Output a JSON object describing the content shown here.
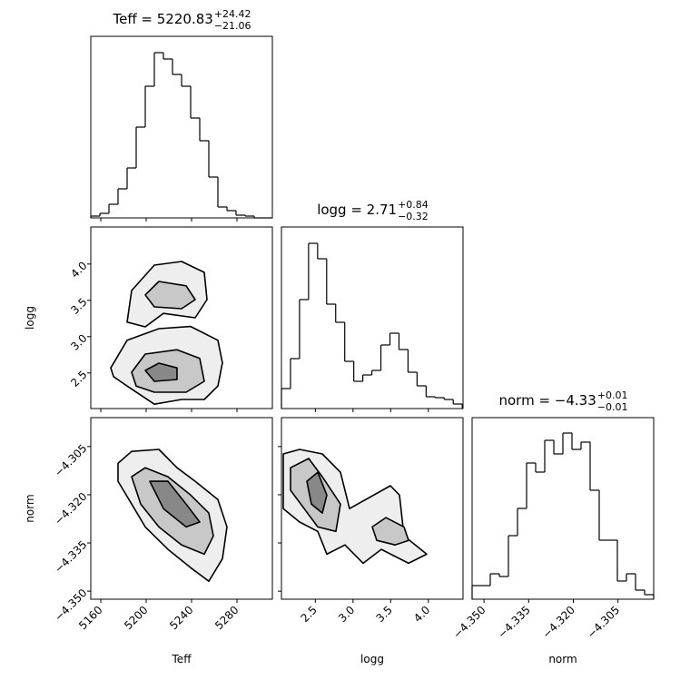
{
  "chart_data": {
    "type": "corner",
    "parameters": [
      {
        "name": "Teff",
        "title": "Teff = 5220.83",
        "title_upper": "+24.42",
        "title_lower": "−21.06",
        "xlim": [
          5151.2,
          5311.2
        ],
        "xticks": [
          5160,
          5200,
          5240,
          5280
        ]
      },
      {
        "name": "logg",
        "title": "logg = 2.71",
        "title_upper": "+0.84",
        "title_lower": "−0.32",
        "xlim": [
          2.05,
          4.46
        ],
        "xticks": [
          2.5,
          {
            "value": 3,
            "label": "3.0"
          },
          3.5,
          {
            "value": 4,
            "label": "4.0"
          }
        ],
        "ylim": [
          2.01,
          4.51
        ],
        "yticks": [
          2.5,
          {
            "value": 3,
            "label": "3.0"
          },
          3.5,
          {
            "value": 4,
            "label": "4.0"
          }
        ]
      },
      {
        "name": "norm",
        "title": "norm = −4.33",
        "title_upper": "+0.01",
        "title_lower": "−0.01",
        "xlim": [
          -4.354,
          -4.293
        ],
        "xticks": [
          {
            "value": -4.35,
            "label": "−4.350"
          },
          {
            "value": -4.335,
            "label": "−4.335"
          },
          {
            "value": -4.32,
            "label": "−4.320"
          },
          {
            "value": -4.305,
            "label": "−4.305"
          }
        ],
        "ylim": [
          -4.3525,
          -4.296
        ],
        "yticks": [
          {
            "value": -4.305,
            "label": "−4.305"
          },
          {
            "value": -4.32,
            "label": "−4.320"
          },
          {
            "value": -4.335,
            "label": "−4.335"
          },
          {
            "value": -4.35,
            "label": "−4.350"
          }
        ]
      }
    ],
    "histograms": [
      {
        "bins": [
          5151.2,
          5159.2,
          5167.2,
          5175.2,
          5183.2,
          5191.2,
          5199.2,
          5207.2,
          5215.2,
          5223.2,
          5231.2,
          5239.2,
          5247.2,
          5255.2,
          5263.2,
          5271.2,
          5279.2,
          5287.2,
          5295.2,
          5303.2,
          5311.2
        ],
        "counts": [
          2,
          5,
          15,
          32,
          55,
          100,
          145,
          182,
          175,
          158,
          145,
          110,
          85,
          45,
          12,
          8,
          3,
          2,
          0,
          0
        ],
        "ylim": [
          0,
          200
        ]
      },
      {
        "bins": [
          2.05,
          2.17,
          2.29,
          2.41,
          2.53,
          2.65,
          2.77,
          2.89,
          3.01,
          3.13,
          3.25,
          3.37,
          3.49,
          3.61,
          3.73,
          3.85,
          3.97,
          4.09,
          4.21,
          4.33,
          4.45
        ],
        "counts": [
          22,
          55,
          120,
          182,
          165,
          115,
          95,
          52,
          30,
          37,
          42,
          70,
          83,
          65,
          40,
          25,
          13,
          12,
          10,
          5
        ],
        "ylim": [
          0,
          200
        ]
      },
      {
        "bins": [
          -4.354,
          -4.35095,
          -4.3479,
          -4.34485,
          -4.3418,
          -4.33875,
          -4.3357,
          -4.33265,
          -4.3296,
          -4.32655,
          -4.3235,
          -4.32045,
          -4.3174,
          -4.31435,
          -4.3113,
          -4.30825,
          -4.3052,
          -4.30215,
          -4.2991,
          -4.29605,
          -4.293
        ],
        "counts": [
          15,
          15,
          28,
          25,
          70,
          100,
          150,
          140,
          175,
          160,
          183,
          165,
          173,
          120,
          65,
          65,
          20,
          28,
          10,
          5
        ],
        "ylim": [
          0,
          200
        ]
      }
    ],
    "pairs": [
      {
        "contours": [
          {
            "fill": "#eeeeee",
            "x": [
              5168.8,
              5183.2,
              5211.2,
              5239.2,
              5263.2,
              5267.2,
              5263.2,
              5251.2,
              5231.2,
              5207.2,
              5183.2,
              5171.2
            ],
            "y": [
              2.57,
              2.95,
              3.11,
              3.14,
              2.95,
              2.64,
              2.32,
              2.135,
              2.135,
              2.07,
              2.32,
              2.45
            ]
          },
          {
            "fill": "#eeeeee",
            "x": [
              5183.2,
              5187.2,
              5207.2,
              5231.2,
              5251.2,
              5253.6,
              5243.2,
              5215.2,
              5199.2
            ],
            "y": [
              3.2,
              3.635,
              3.985,
              4.035,
              3.885,
              3.51,
              3.26,
              3.32,
              3.135
            ]
          },
          {
            "fill": "#c8c8c8",
            "x": [
              5187.2,
              5199.2,
              5227.2,
              5247.2,
              5251.2,
              5235.2,
              5207.2,
              5191.2
            ],
            "y": [
              2.51,
              2.76,
              2.82,
              2.7,
              2.385,
              2.235,
              2.235,
              2.32
            ]
          },
          {
            "fill": "#c8c8c8",
            "x": [
              5199.2,
              5211.2,
              5235.2,
              5243.2,
              5231.2,
              5207.2
            ],
            "y": [
              3.575,
              3.76,
              3.7,
              3.51,
              3.385,
              3.41
            ]
          },
          {
            "fill": "#888888",
            "x": [
              5199.2,
              5211.2,
              5227.2,
              5227.2,
              5207.2
            ],
            "y": [
              2.535,
              2.635,
              2.57,
              2.41,
              2.385
            ]
          }
        ]
      },
      {
        "contours": [
          {
            "fill": "#eeeeee",
            "x": [
              5175.2,
              5187.2,
              5211.2,
              5227.2,
              5243.2,
              5263.2,
              5271.2,
              5267.2,
              5255.2,
              5239.2,
              5219.2,
              5199.2,
              5187.2,
              5175.2
            ],
            "y": [
              -4.3102,
              -4.3065,
              -4.3059,
              -4.3116,
              -4.3158,
              -4.3215,
              -4.33,
              -4.3399,
              -4.3469,
              -4.3427,
              -4.337,
              -4.33,
              -4.3229,
              -4.3158
            ]
          },
          {
            "fill": "#c8c8c8",
            "x": [
              5187.2,
              5199.2,
              5219.2,
              5239.2,
              5255.2,
              5259.2,
              5251.2,
              5231.2,
              5211.2,
              5195.2
            ],
            "y": [
              -4.3144,
              -4.3116,
              -4.3144,
              -4.3201,
              -4.3257,
              -4.3328,
              -4.3385,
              -4.3356,
              -4.33,
              -4.3229
            ]
          },
          {
            "fill": "#888888",
            "x": [
              5203.2,
              5219.2,
              5235.2,
              5247.2,
              5235.2,
              5215.2
            ],
            "y": [
              -4.3158,
              -4.3158,
              -4.3229,
              -4.3285,
              -4.33,
              -4.3243
            ]
          }
        ]
      },
      {
        "contours": [
          {
            "fill": "#eeeeee",
            "x": [
              2.074,
              2.291,
              2.592,
              2.833,
              2.954,
              3.496,
              3.617,
              3.677,
              3.978,
              3.737,
              3.376,
              3.135,
              2.893,
              2.653,
              2.532,
              2.291,
              2.074
            ],
            "y": [
              -4.3073,
              -4.3059,
              -4.3073,
              -4.313,
              -4.3243,
              -4.3172,
              -4.3201,
              -4.3328,
              -4.3385,
              -4.3413,
              -4.337,
              -4.3413,
              -4.3356,
              -4.3385,
              -4.3314,
              -4.3285,
              -4.3243
            ]
          },
          {
            "fill": "#c8c8c8",
            "x": [
              2.171,
              2.412,
              2.592,
              2.833,
              2.773,
              2.532,
              2.351,
              2.17
            ],
            "y": [
              -4.3116,
              -4.3087,
              -4.3144,
              -4.3229,
              -4.3314,
              -4.33,
              -4.3243,
              -4.3186
            ]
          },
          {
            "fill": "#c8c8c8",
            "x": [
              3.255,
              3.436,
              3.677,
              3.737,
              3.557,
              3.315
            ],
            "y": [
              -4.33,
              -4.3271,
              -4.33,
              -4.3342,
              -4.3356,
              -4.3342
            ]
          },
          {
            "fill": "#888888",
            "x": [
              2.387,
              2.532,
              2.653,
              2.592,
              2.448
            ],
            "y": [
              -4.3158,
              -4.313,
              -4.3201,
              -4.3257,
              -4.3229
            ]
          }
        ]
      }
    ]
  }
}
